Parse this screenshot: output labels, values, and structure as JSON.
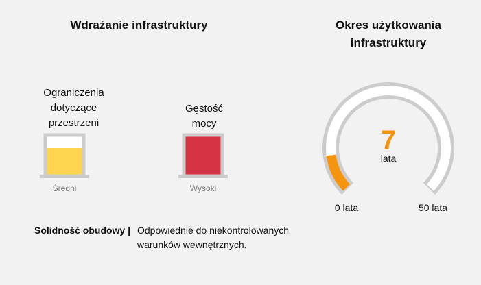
{
  "deployment": {
    "title": "Wdrażanie infrastruktury",
    "meters": [
      {
        "label_lines": [
          "Ograniczenia",
          "dotyczące",
          "przestrzeni"
        ],
        "level": "Średni",
        "fill_fraction": 0.7,
        "color": "#ffd54f"
      },
      {
        "label_lines": [
          "Gęstość",
          "mocy"
        ],
        "level": "Wysoki",
        "fill_fraction": 1.0,
        "color": "#d63345"
      }
    ]
  },
  "lifetime": {
    "title_lines": [
      "Okres użytkowania",
      "infrastruktury"
    ],
    "value": "7",
    "unit": "lata",
    "min_label": "0 lata",
    "max_label": "50 lata",
    "min": 0,
    "max": 50,
    "current": 7,
    "accent_color": "#f5940f",
    "track_color": "#cccccc"
  },
  "enclosure": {
    "label": "Solidność obudowy |",
    "text_lines": [
      "Odpowiednie do niekontrolowanych",
      "warunków wewnętrznych."
    ]
  }
}
